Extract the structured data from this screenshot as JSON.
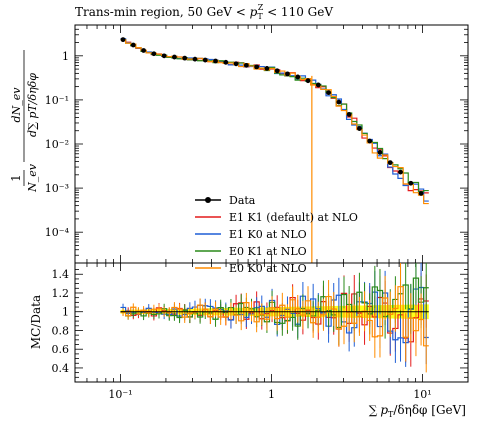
{
  "chart_data": {
    "type": "line",
    "title": "Trans-min region, 50 GeV < p_T^Z < 110 GeV",
    "title_plain": "Trans-min region, 50 GeV < ",
    "title_pt": "p",
    "title_sub": "T",
    "title_sup": "Z",
    "title_rest": " < 110 GeV",
    "xlabel": "∑ pT/δηδφ [GeV]",
    "xlabel_sum": "∑",
    "xlabel_p": "p",
    "xlabel_sub": "T",
    "xlabel_rest": "/δηδφ [GeV]",
    "ylabel_top_num": "dN_ev",
    "ylabel_top_den": "d∑ pT/δηδφ",
    "ylabel_top_prefix_num": "1",
    "ylabel_top_prefix_den": "N_ev",
    "ylabel_bottom": "MC/Data",
    "xscale": "log",
    "yscale": "log",
    "xlim": [
      0.05,
      20
    ],
    "ylim": [
      2e-05,
      5
    ],
    "ratio_ylim": [
      0.25,
      1.52
    ],
    "x_ticks": [
      0.1,
      1,
      10
    ],
    "x_tick_labels": [
      "10⁻¹",
      "1",
      "10¹"
    ],
    "y_ticks": [
      0.0001,
      0.001,
      0.01,
      0.1,
      1
    ],
    "y_tick_labels": [
      "10⁻⁴",
      "10⁻³",
      "10⁻²",
      "10⁻¹",
      "1"
    ],
    "ratio_ticks": [
      0.4,
      0.6,
      0.8,
      1,
      1.2,
      1.4
    ],
    "ratio_tick_labels": [
      "0.4",
      "0.6",
      "0.8",
      "1",
      "1.2",
      "1.4"
    ],
    "legend_position": "bottom-left",
    "data_x": [
      0.1,
      0.12,
      0.15,
      0.2,
      0.3,
      0.45,
      0.7,
      1.0,
      1.5,
      2.0,
      2.5,
      3.0,
      4.0,
      5.0,
      6.0,
      7.0,
      8.0,
      10.0
    ],
    "data_y": [
      2.5,
      1.8,
      1.2,
      0.98,
      0.85,
      0.75,
      0.6,
      0.5,
      0.33,
      0.23,
      0.13,
      0.07,
      0.018,
      0.0075,
      0.004,
      0.0025,
      0.0015,
      0.0007
    ],
    "series": [
      {
        "name": "Data",
        "color": "#000000",
        "style": "points"
      },
      {
        "name": "E1 K1 (default) at NLO",
        "color": "#e41a1c",
        "style": "line"
      },
      {
        "name": "E1 K0 at NLO",
        "color": "#1f5fd6",
        "style": "line"
      },
      {
        "name": "E0 K1 at NLO",
        "color": "#2a8a1a",
        "style": "line"
      },
      {
        "name": "E0 K0 at NLO",
        "color": "#ff8c00",
        "style": "line"
      }
    ],
    "ratio_band_color": "#ffff00"
  }
}
